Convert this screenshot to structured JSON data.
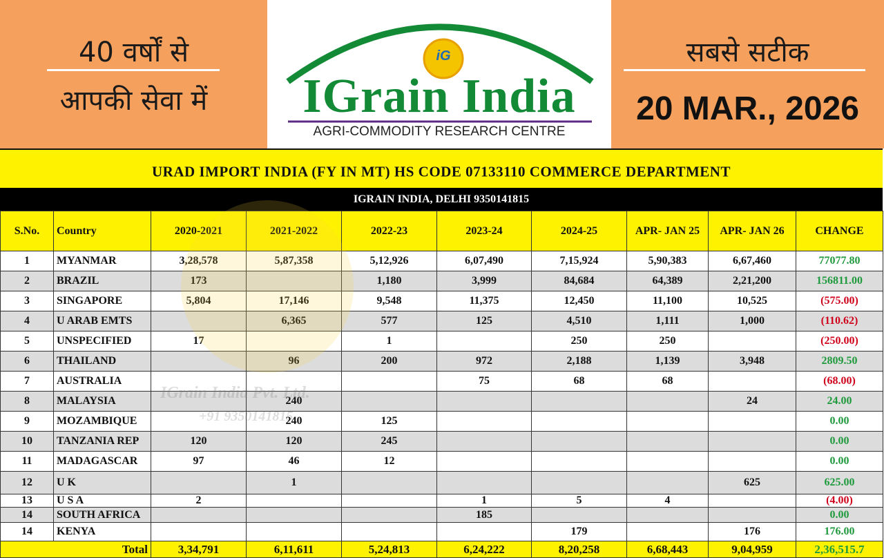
{
  "header": {
    "left_line1": "40 वर्षों से",
    "left_line2": "आपकी सेवा में",
    "logo_badge": "iG",
    "logo_title": "IGrain India",
    "logo_subtitle": "AGRI-COMMODITY RESEARCH CENTRE",
    "right_tagline": "सबसे सटीक",
    "date": "20 MAR., 2026"
  },
  "table": {
    "title": "URAD IMPORT INDIA (FY IN MT) HS CODE 07133110 COMMERCE DEPARTMENT",
    "subtitle": "IGRAIN INDIA, DELHI 9350141815",
    "columns": [
      "S.No.",
      "Country",
      "2020-2021",
      "2021-2022",
      "2022-23",
      "2023-24",
      "2024-25",
      "APR- JAN 25",
      "APR- JAN 26",
      "CHANGE"
    ],
    "rows": [
      [
        "1",
        "MYANMAR",
        "3,28,578",
        "5,87,358",
        "5,12,926",
        "6,07,490",
        "7,15,924",
        "5,90,383",
        "6,67,460",
        "77077.80"
      ],
      [
        "2",
        "BRAZIL",
        "173",
        null,
        "1,180",
        "3,999",
        "84,684",
        "64,389",
        "2,21,200",
        "156811.00"
      ],
      [
        "3",
        "SINGAPORE",
        "5,804",
        "17,146",
        "9,548",
        "11,375",
        "12,450",
        "11,100",
        "10,525",
        "(575.00)"
      ],
      [
        "4",
        "U ARAB EMTS",
        null,
        "6,365",
        "577",
        "125",
        "4,510",
        "1,111",
        "1,000",
        "(110.62)"
      ],
      [
        "5",
        "UNSPECIFIED",
        "17",
        null,
        "1",
        null,
        "250",
        "250",
        null,
        "(250.00)"
      ],
      [
        "6",
        "THAILAND",
        null,
        "96",
        "200",
        "972",
        "2,188",
        "1,139",
        "3,948",
        "2809.50"
      ],
      [
        "7",
        "AUSTRALIA",
        null,
        null,
        null,
        "75",
        "68",
        "68",
        null,
        "(68.00)"
      ],
      [
        "8",
        "MALAYSIA",
        null,
        "240",
        null,
        null,
        null,
        null,
        "24",
        "24.00"
      ],
      [
        "9",
        "MOZAMBIQUE",
        null,
        "240",
        "125",
        null,
        null,
        null,
        null,
        "0.00"
      ],
      [
        "10",
        "TANZANIA REP",
        "120",
        "120",
        "245",
        null,
        null,
        null,
        null,
        "0.00"
      ],
      [
        "11",
        "MADAGASCAR",
        "97",
        "46",
        "12",
        null,
        null,
        null,
        null,
        "0.00"
      ],
      [
        "12",
        "U K",
        null,
        "1",
        null,
        null,
        null,
        null,
        "625",
        "625.00"
      ],
      [
        "13",
        "U S A",
        "2",
        null,
        null,
        "1",
        "5",
        "4",
        null,
        "(4.00)"
      ],
      [
        "14",
        "SOUTH AFRICA",
        null,
        null,
        null,
        "185",
        null,
        null,
        null,
        "0.00"
      ],
      [
        "14",
        "KENYA",
        null,
        null,
        null,
        null,
        "179",
        null,
        "176",
        "176.00"
      ]
    ],
    "total": {
      "label": "Total",
      "values": [
        "3,34,791",
        "6,11,611",
        "5,24,813",
        "6,24,222",
        "8,20,258",
        "6,68,443",
        "9,04,959",
        "2,36,515.7"
      ]
    }
  },
  "watermark": {
    "line1": "IGrain India Pvt. Ltd.",
    "line2": "+91 9350141815"
  }
}
